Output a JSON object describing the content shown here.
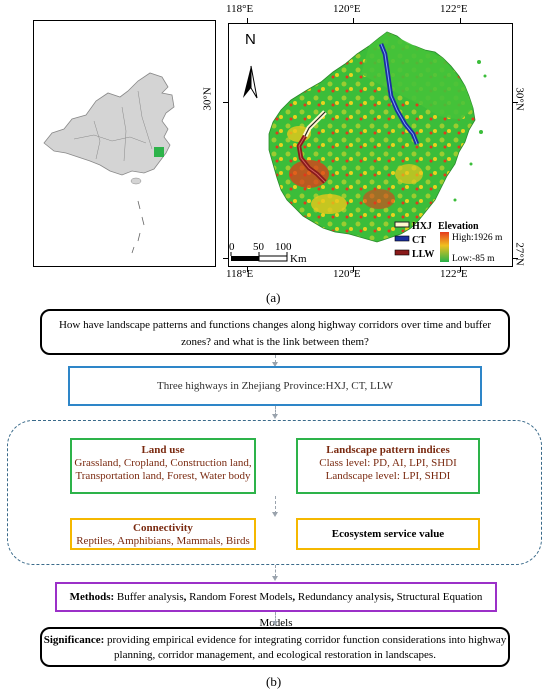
{
  "panel_a": {
    "label": "(a)",
    "lon_labels": [
      "118°E",
      "120°E",
      "122°E"
    ],
    "lat_labels": [
      "30°N",
      "27°N"
    ],
    "north_label": "N",
    "scale": {
      "ticks": [
        "0",
        "50",
        "100"
      ],
      "unit": "Km"
    },
    "legend": {
      "highways": [
        "HXJ",
        "CT",
        "LLW"
      ],
      "elevation_title": "Elevation",
      "high": "High:1926 m",
      "low": "Low:-85 m"
    }
  },
  "panel_b": {
    "label": "(b)",
    "question": "How have landscape patterns and functions changes along highway corridors over time and buffer zones? and what is the link between them?",
    "highways": "Three highways in Zhejiang Province:HXJ, CT, LLW",
    "land_use": {
      "title": "Land use",
      "line1": "Grassland, Cropland, Construction land,",
      "line2": "Transportation land, Forest, Water body"
    },
    "pattern": {
      "title": "Landscape pattern indices",
      "line1": "Class level:  PD, AI, LPI, SHDI",
      "line2": "Landscape level: LPI, SHDI"
    },
    "connectivity": {
      "title": "Connectivity",
      "line1": "Reptiles, Amphibians, Mammals, Birds"
    },
    "esv": {
      "title": "Ecosystem service value"
    },
    "methods": {
      "prefix": "Methods:",
      "m1": " Buffer analysis",
      "m2": "Random Forest Models",
      "m3": "Redundancy analysis",
      "m4": "Structural Equation Models"
    },
    "significance": {
      "prefix": "Significance:",
      "line1": " providing empirical evidence for integrating corridor function considerations into highway",
      "line2": "planning, corridor management, and ecological restoration in landscapes."
    }
  },
  "colors": {
    "blue": "#2e86c8",
    "green": "#2db34a",
    "yellow": "#f5b800",
    "purple": "#9b30c8",
    "brown": "#7a2a10"
  }
}
